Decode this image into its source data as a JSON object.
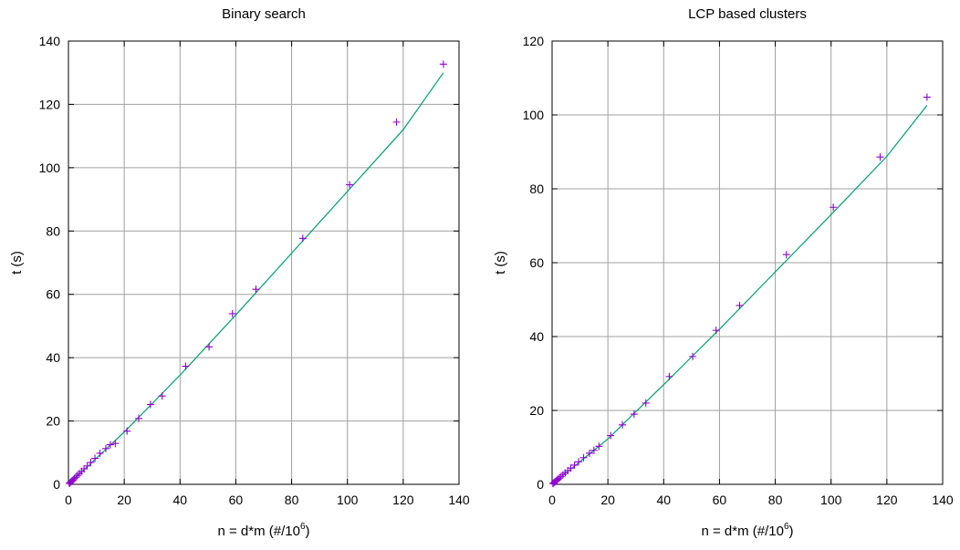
{
  "chart_data": [
    {
      "type": "scatter",
      "title": "Binary search",
      "xlabel": "n = d*m (#/10",
      "xlabel_sup": "6",
      "xlabel_close": ")",
      "ylabel": "t (s)",
      "xlim": [
        0,
        140
      ],
      "ylim": [
        0,
        140
      ],
      "xticks": [
        0,
        20,
        40,
        60,
        80,
        100,
        120,
        140
      ],
      "yticks": [
        0,
        20,
        40,
        60,
        80,
        100,
        120,
        140
      ],
      "grid": true,
      "colors": {
        "points": "#9400d3",
        "fit": "#009e73"
      },
      "series": [
        {
          "marker": "+",
          "x": [
            0.3,
            0.6,
            0.9,
            1.3,
            1.7,
            2.1,
            2.6,
            3.2,
            3.9,
            4.7,
            5.6,
            6.7,
            8.0,
            9.5,
            11.3,
            13.4,
            15.0,
            16.8,
            21.0,
            25.2,
            29.4,
            33.6,
            42.0,
            50.4,
            58.8,
            67.2,
            84.0,
            100.8,
            117.6,
            134.4
          ],
          "y": [
            0.3,
            0.5,
            0.8,
            1.1,
            1.4,
            1.8,
            2.2,
            2.8,
            3.4,
            4.1,
            4.9,
            5.8,
            6.9,
            8.2,
            9.8,
            11.3,
            12.5,
            12.9,
            16.8,
            20.8,
            25.2,
            27.9,
            37.3,
            43.4,
            53.9,
            61.6,
            77.7,
            94.6,
            114.4,
            132.7
          ]
        },
        {
          "type": "line",
          "x": [
            0,
            20,
            40,
            60,
            80,
            100,
            120,
            134.4
          ],
          "y": [
            0,
            16.5,
            34.5,
            53.5,
            73.0,
            92.5,
            112.0,
            130.0
          ]
        }
      ]
    },
    {
      "type": "scatter",
      "title": "LCP based clusters",
      "xlabel": "n = d*m (#/10",
      "xlabel_sup": "6",
      "xlabel_close": ")",
      "ylabel": "t (s)",
      "xlim": [
        0,
        140
      ],
      "ylim": [
        0,
        120
      ],
      "xticks": [
        0,
        20,
        40,
        60,
        80,
        100,
        120,
        140
      ],
      "yticks": [
        0,
        20,
        40,
        60,
        80,
        100,
        120
      ],
      "grid": true,
      "colors": {
        "points": "#9400d3",
        "fit": "#009e73"
      },
      "series": [
        {
          "marker": "+",
          "x": [
            0.3,
            0.6,
            0.9,
            1.3,
            1.7,
            2.1,
            2.6,
            3.2,
            3.9,
            4.7,
            5.6,
            6.7,
            8.0,
            9.5,
            11.3,
            13.4,
            15.0,
            16.8,
            21.0,
            25.2,
            29.4,
            33.6,
            42.0,
            50.4,
            58.8,
            67.2,
            84.0,
            100.8,
            117.6,
            134.4
          ],
          "y": [
            0.2,
            0.4,
            0.6,
            0.8,
            1.1,
            1.4,
            1.7,
            2.1,
            2.6,
            3.1,
            3.7,
            4.4,
            5.2,
            6.1,
            7.2,
            8.4,
            9.2,
            10.3,
            13.2,
            16.1,
            19.0,
            22.0,
            29.2,
            34.6,
            41.7,
            48.4,
            62.2,
            75.0,
            88.6,
            104.8
          ]
        },
        {
          "type": "line",
          "x": [
            0,
            20,
            40,
            60,
            80,
            100,
            120,
            134.4
          ],
          "y": [
            0,
            12.3,
            27.0,
            42.0,
            57.5,
            73.0,
            88.8,
            102.6
          ]
        }
      ]
    }
  ]
}
